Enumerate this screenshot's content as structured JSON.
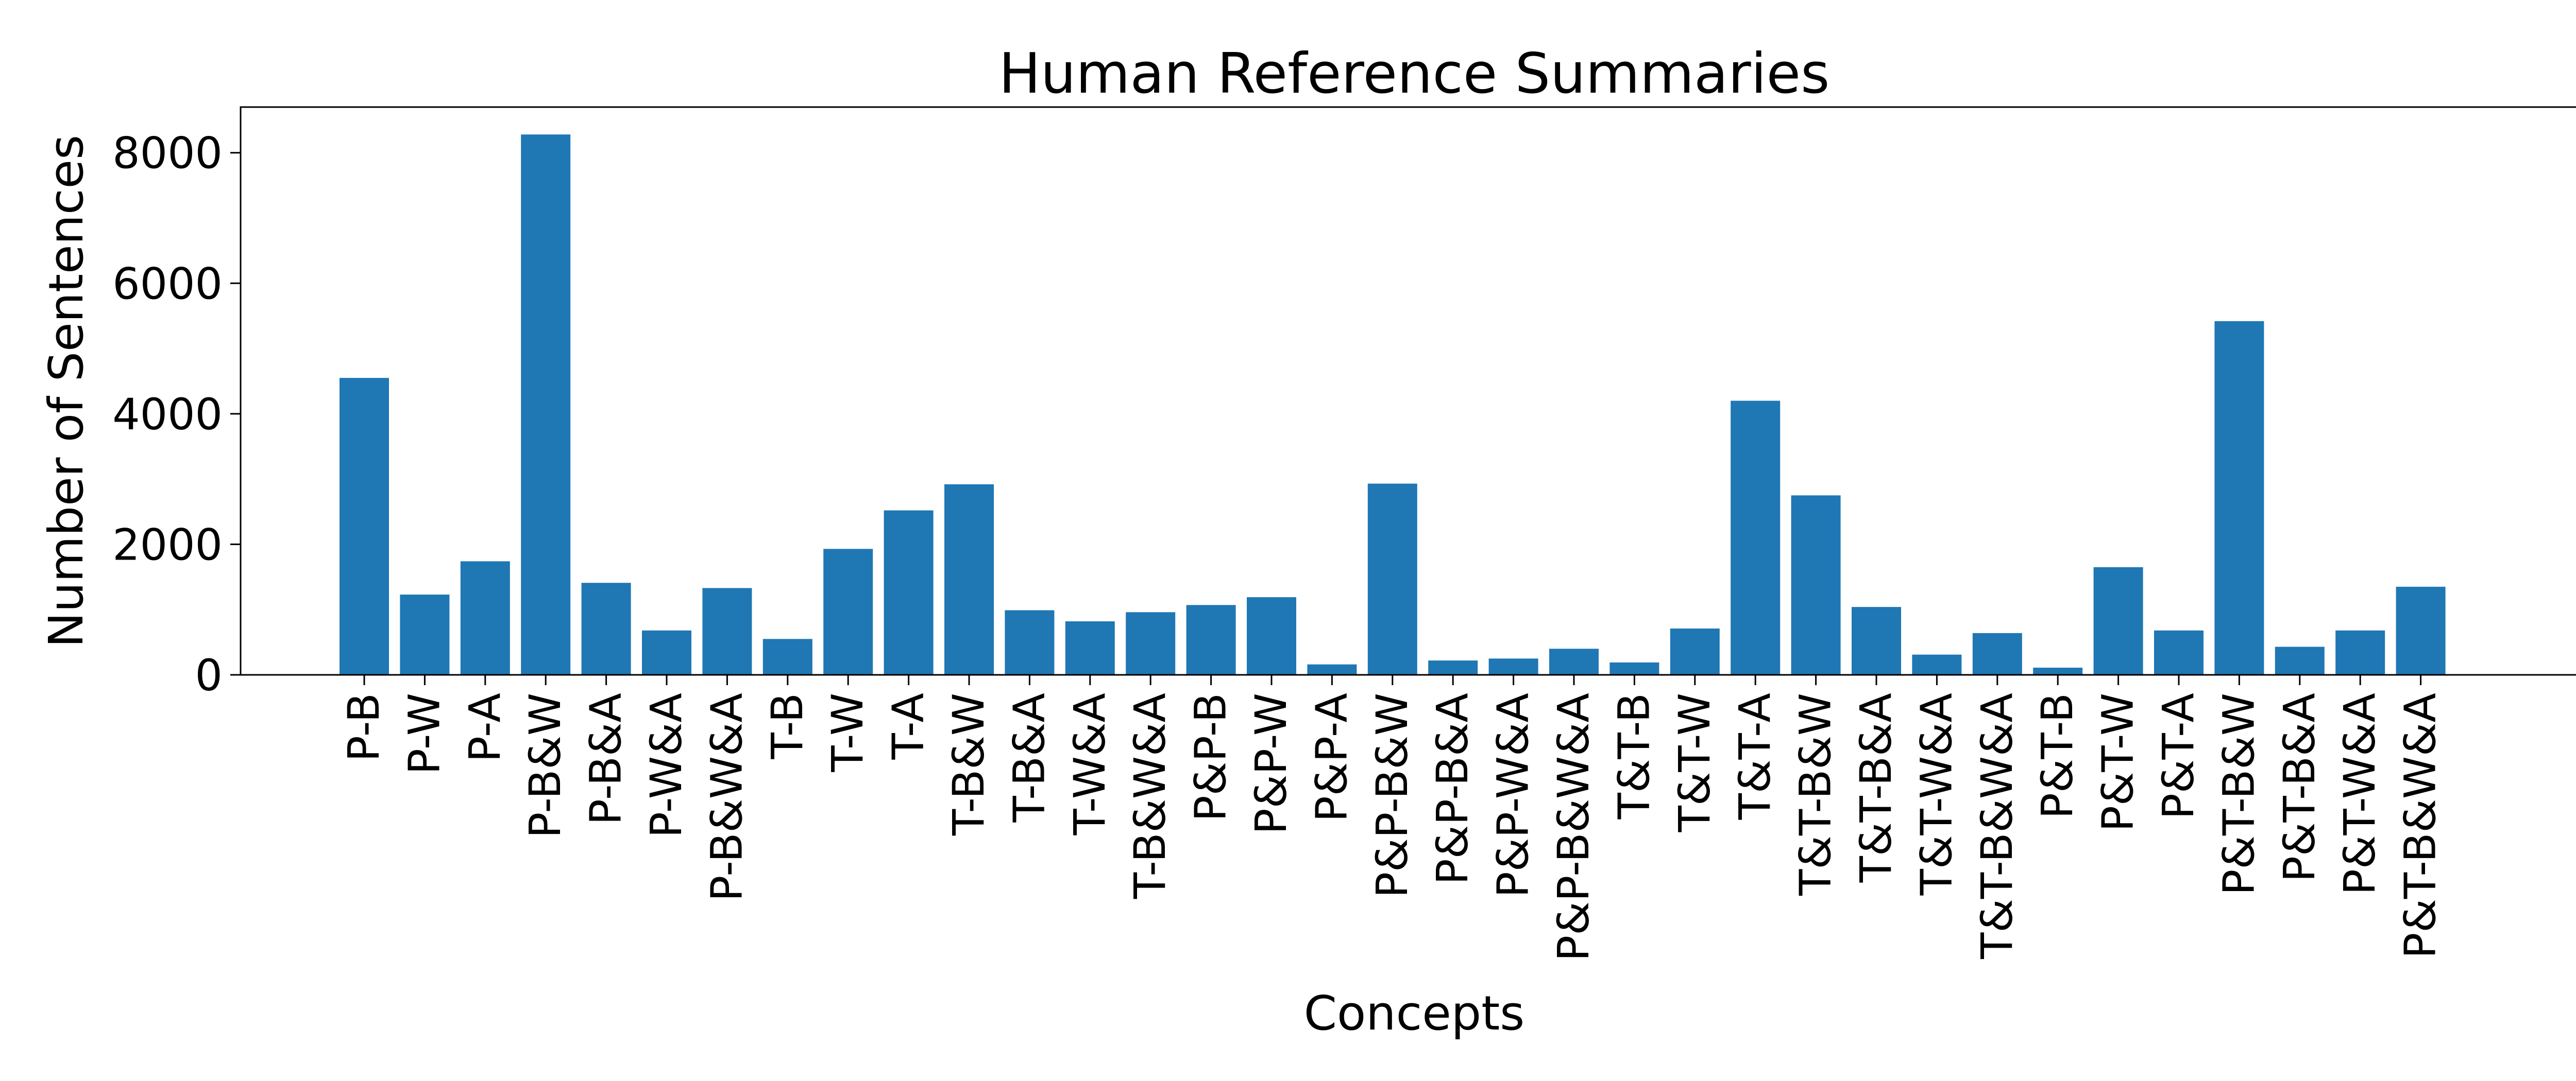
{
  "chart_data": {
    "type": "bar",
    "title": "Human Reference Summaries",
    "xlabel": "Concepts",
    "ylabel": "Number of Sentences",
    "ylim": [
      0,
      8700
    ],
    "yticks": [
      0,
      2000,
      4000,
      6000,
      8000
    ],
    "grid": false,
    "legend": "none",
    "bar_color": "#1f77b4",
    "categories": [
      "P-B",
      "P-W",
      "P-A",
      "P-B&W",
      "P-B&A",
      "P-W&A",
      "P-B&W&A",
      "T-B",
      "T-W",
      "T-A",
      "T-B&W",
      "T-B&A",
      "T-W&A",
      "T-B&W&A",
      "P&P-B",
      "P&P-W",
      "P&P-A",
      "P&P-B&W",
      "P&P-B&A",
      "P&P-W&A",
      "P&P-B&W&A",
      "T&T-B",
      "T&T-W",
      "T&T-A",
      "T&T-B&W",
      "T&T-B&A",
      "T&T-W&A",
      "T&T-B&W&A",
      "P&T-B",
      "P&T-W",
      "P&T-A",
      "P&T-B&W",
      "P&T-B&A",
      "P&T-W&A",
      "P&T-B&W&A"
    ],
    "values": [
      4550,
      1230,
      1740,
      8280,
      1410,
      680,
      1330,
      550,
      1930,
      2520,
      2920,
      990,
      820,
      960,
      1070,
      1190,
      160,
      2930,
      220,
      250,
      400,
      190,
      710,
      4200,
      2750,
      1040,
      310,
      640,
      110,
      1650,
      680,
      5420,
      430,
      680,
      1350
    ]
  }
}
